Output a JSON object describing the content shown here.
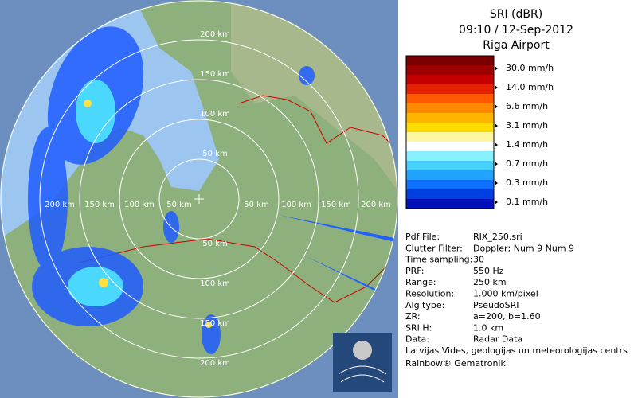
{
  "header": {
    "title": "SRI (dBR)",
    "time": "09:10 / 12-Sep-2012",
    "site": "Riga Airport"
  },
  "legend": {
    "colors": [
      "#7a0000",
      "#9c0000",
      "#c40000",
      "#e42000",
      "#ff5a00",
      "#ff8800",
      "#ffb400",
      "#ffdc00",
      "#fff6a0",
      "#ffffff",
      "#88f0ff",
      "#48d0ff",
      "#20a4ff",
      "#1070ff",
      "#0040e0",
      "#0010b8"
    ],
    "labels": [
      "30.0 mm/h",
      "14.0 mm/h",
      "6.6 mm/h",
      "3.1 mm/h",
      "1.4 mm/h",
      "0.7 mm/h",
      "0.3 mm/h",
      "0.1 mm/h"
    ]
  },
  "range_labels": {
    "top": [
      "50 km",
      "100 km",
      "150 km",
      "200 km"
    ],
    "bottom": [
      "50 km",
      "100 km",
      "150 km",
      "200 km"
    ],
    "left": [
      "50 km",
      "100 km",
      "150 km",
      "200 km"
    ],
    "right": [
      "50 km",
      "100 km",
      "150 km",
      "200 km"
    ]
  },
  "info": [
    [
      "Pdf File:",
      "RIX_250.sri"
    ],
    [
      "Clutter Filter:",
      "Doppler; Num 9 Num 9"
    ],
    [
      "Time sampling:",
      "30"
    ],
    [
      "PRF:",
      "550 Hz"
    ],
    [
      "Range:",
      "250 km"
    ],
    [
      "Resolution:",
      "1.000 km/pixel"
    ],
    [
      "Alg type:",
      "PseudoSRI"
    ],
    [
      "ZR:",
      "a=200, b=1.60"
    ],
    [
      "SRI H:",
      "1.0 km"
    ],
    [
      "Data:",
      "Radar Data"
    ]
  ],
  "footer": [
    "Latvijas Vides, geologijas un meteorologijas centrs",
    "Rainbow® Gematronik"
  ]
}
